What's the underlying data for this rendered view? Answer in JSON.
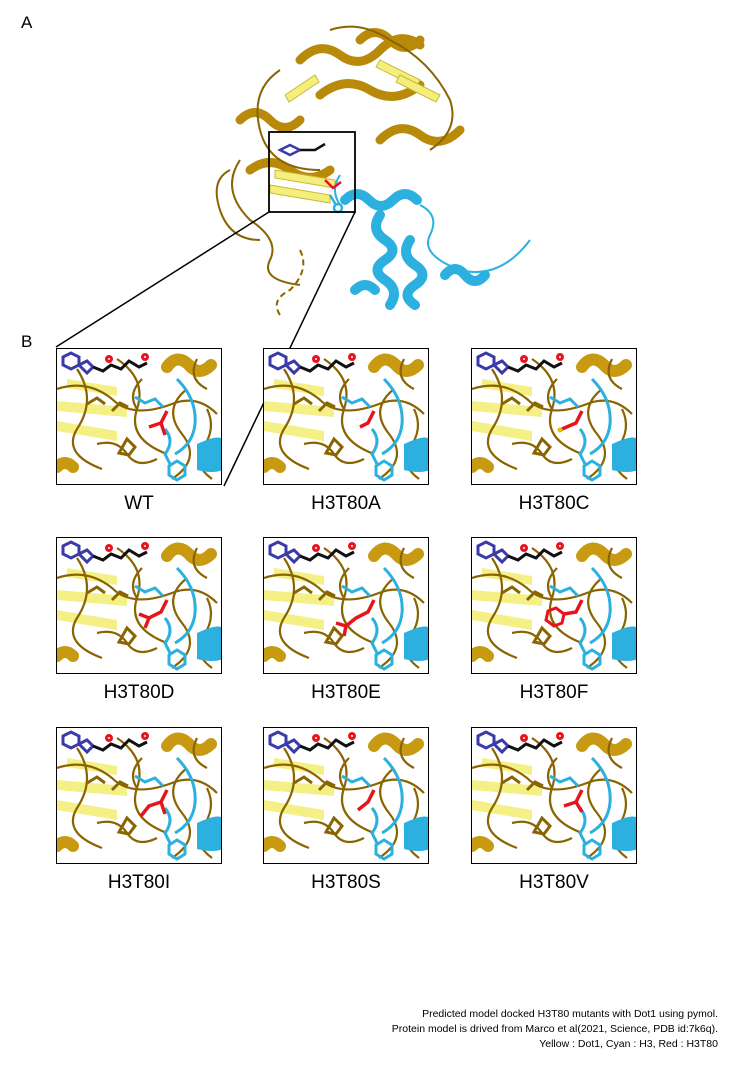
{
  "panels": {
    "a_label": "A",
    "b_label": "B"
  },
  "colors": {
    "dot1_light": "#f3ef7a",
    "dot1_dark": "#8a6400",
    "dot1_gold": "#c79a12",
    "h3_cyan": "#2bb0e0",
    "h3t80_red": "#e8141c",
    "ligand_black": "#111111",
    "ligand_blue": "#3a3aa8"
  },
  "mutants": [
    {
      "name": "WT",
      "side_chain": "thr"
    },
    {
      "name": "H3T80A",
      "side_chain": "ala"
    },
    {
      "name": "H3T80C",
      "side_chain": "cys"
    },
    {
      "name": "H3T80D",
      "side_chain": "asp"
    },
    {
      "name": "H3T80E",
      "side_chain": "glu"
    },
    {
      "name": "H3T80F",
      "side_chain": "phe"
    },
    {
      "name": "H3T80I",
      "side_chain": "ile"
    },
    {
      "name": "H3T80S",
      "side_chain": "ser"
    },
    {
      "name": "H3T80V",
      "side_chain": "val"
    }
  ],
  "caption": {
    "line1": "Predicted model docked H3T80 mutants with Dot1 using pymol.",
    "line2": "Protein model is drived from Marco et al(2021, Science, PDB id:7k6q).",
    "line3": "Yellow : Dot1, Cyan : H3, Red : H3T80"
  }
}
